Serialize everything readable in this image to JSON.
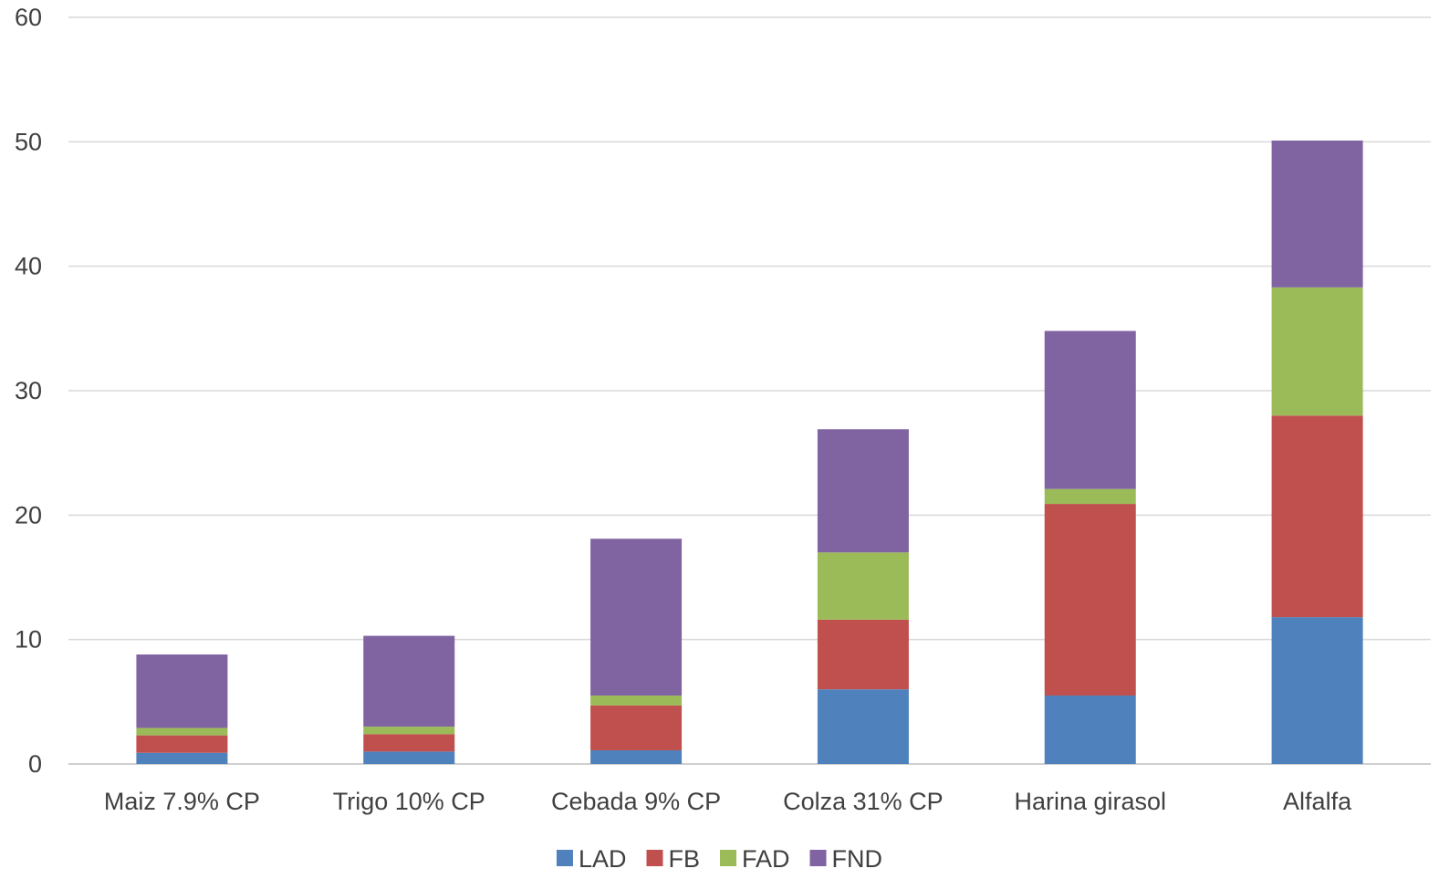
{
  "chart_data": {
    "type": "bar",
    "stacked": true,
    "title": "",
    "xlabel": "",
    "ylabel": "",
    "ylim": [
      0,
      60
    ],
    "yticks": [
      "0",
      "10",
      "20",
      "30",
      "40",
      "50",
      "60"
    ],
    "grid": true,
    "legend_position": "bottom",
    "categories": [
      "Maiz 7.9% CP",
      "Trigo 10% CP",
      "Cebada 9% CP",
      "Colza 31% CP",
      "Harina girasol",
      "Alfalfa"
    ],
    "series": [
      {
        "name": "LAD",
        "color": "#4f81bd",
        "values": [
          0.9,
          1.0,
          1.1,
          6.0,
          5.5,
          11.8
        ]
      },
      {
        "name": "FB",
        "color": "#c0504d",
        "values": [
          1.4,
          1.4,
          3.6,
          5.6,
          15.4,
          16.2
        ]
      },
      {
        "name": "FAD",
        "color": "#9bbb59",
        "values": [
          0.6,
          0.6,
          0.8,
          5.4,
          1.2,
          10.3
        ]
      },
      {
        "name": "FND",
        "color": "#8064a2",
        "values": [
          5.9,
          7.3,
          12.6,
          9.9,
          12.7,
          11.8
        ]
      }
    ]
  }
}
